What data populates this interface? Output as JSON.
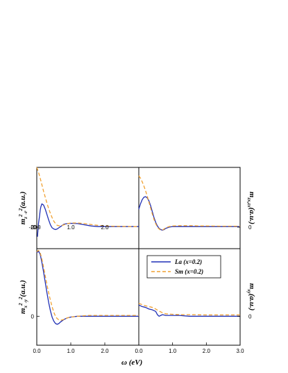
{
  "figure": {
    "x_axis_label": "ω (eV)",
    "panels": [
      {
        "id": "tl",
        "ylabel_parts": [
          "m",
          "z",
          "2",
          "-r",
          "2",
          "(a.u.)"
        ],
        "zero_label": "0",
        "zero_label_overlap": "-20"
      },
      {
        "id": "tr",
        "ylabel_parts": [
          "m",
          "zx,zx",
          "(a.u.)"
        ],
        "zero_label": "0"
      },
      {
        "id": "bl",
        "ylabel_parts": [
          "m",
          "x",
          "2",
          "-y",
          "2",
          "(a.u.)"
        ],
        "zero_label": "0"
      },
      {
        "id": "br",
        "ylabel_parts": [
          "m",
          "xy",
          "(a.u.)"
        ],
        "zero_label": "0"
      }
    ],
    "legend": [
      {
        "label": "La (x=0.2)",
        "color": "#1f2fb5",
        "style": "solid"
      },
      {
        "label": "Sm (x=0.2)",
        "color": "#f0a030",
        "style": "dashed"
      }
    ]
  },
  "chart_data": [
    {
      "type": "line",
      "panel": "tl",
      "xlim": [
        0,
        3.0
      ],
      "x_ticks": [
        0.0,
        1.0,
        2.0
      ],
      "x_tick_labels": [
        "0.0",
        "1.0",
        "2.0"
      ],
      "ylim": [
        -1.8,
        5.0
      ],
      "series": [
        {
          "name": "La (x=0.2)",
          "x": [
            0.02,
            0.05,
            0.08,
            0.1,
            0.12,
            0.15,
            0.2,
            0.25,
            0.3,
            0.35,
            0.4,
            0.45,
            0.5,
            0.55,
            0.6,
            0.65,
            0.7,
            0.8,
            0.9,
            1.0,
            1.2,
            1.4,
            1.6,
            1.8,
            2.0,
            2.2,
            2.4,
            2.6,
            2.8,
            3.0
          ],
          "y": [
            -0.8,
            0.3,
            0.9,
            1.4,
            1.7,
            1.95,
            1.85,
            1.5,
            1.05,
            0.6,
            0.2,
            -0.05,
            -0.15,
            -0.2,
            -0.15,
            -0.05,
            0.05,
            0.25,
            0.3,
            0.32,
            0.3,
            0.2,
            0.1,
            0.05,
            0.05,
            0.05,
            0.05,
            0.05,
            0.05,
            0.05
          ]
        },
        {
          "name": "Sm (x=0.2)",
          "x": [
            0.0,
            0.05,
            0.1,
            0.15,
            0.2,
            0.25,
            0.3,
            0.35,
            0.4,
            0.45,
            0.5,
            0.55,
            0.6,
            0.7,
            0.8,
            0.9,
            1.0,
            1.2,
            1.4,
            1.6,
            1.8,
            2.0,
            2.2,
            2.4,
            2.6,
            2.8,
            3.0
          ],
          "y": [
            5.0,
            4.6,
            4.1,
            3.55,
            3.0,
            2.5,
            2.0,
            1.55,
            1.15,
            0.8,
            0.5,
            0.3,
            0.15,
            0.1,
            0.2,
            0.3,
            0.35,
            0.35,
            0.3,
            0.22,
            0.15,
            0.1,
            0.08,
            0.07,
            0.06,
            0.05,
            0.05
          ]
        }
      ]
    },
    {
      "type": "line",
      "panel": "tr",
      "xlim": [
        0,
        3.0
      ],
      "ylim": [
        -1.8,
        5.0
      ],
      "series": [
        {
          "name": "La (x=0.2)",
          "x": [
            0.0,
            0.05,
            0.1,
            0.15,
            0.2,
            0.25,
            0.3,
            0.35,
            0.4,
            0.45,
            0.5,
            0.55,
            0.6,
            0.65,
            0.7,
            0.75,
            0.8,
            0.9,
            1.0,
            1.2,
            1.4,
            1.6,
            1.8,
            2.0,
            2.2,
            2.5,
            3.0
          ],
          "y": [
            1.5,
            1.95,
            2.3,
            2.5,
            2.55,
            2.45,
            2.2,
            1.8,
            1.3,
            0.8,
            0.4,
            0.1,
            -0.1,
            -0.2,
            -0.25,
            -0.2,
            -0.1,
            0.0,
            0.05,
            0.05,
            0.05,
            0.05,
            0.05,
            0.05,
            0.05,
            0.05,
            0.05
          ]
        },
        {
          "name": "Sm (x=0.2)",
          "x": [
            0.0,
            0.05,
            0.1,
            0.15,
            0.2,
            0.25,
            0.3,
            0.35,
            0.4,
            0.45,
            0.5,
            0.55,
            0.6,
            0.65,
            0.7,
            0.75,
            0.8,
            0.9,
            1.0,
            1.2,
            1.4,
            1.6,
            1.8,
            2.0,
            2.5,
            3.0
          ],
          "y": [
            4.3,
            4.1,
            3.8,
            3.45,
            3.05,
            2.6,
            2.1,
            1.6,
            1.1,
            0.65,
            0.3,
            0.0,
            -0.15,
            -0.25,
            -0.25,
            -0.15,
            -0.05,
            0.05,
            0.1,
            0.12,
            0.12,
            0.12,
            0.1,
            0.1,
            0.08,
            0.08
          ]
        }
      ]
    },
    {
      "type": "line",
      "panel": "bl",
      "xlim": [
        0,
        3.0
      ],
      "x_ticks": [
        0.0,
        1.0,
        2.0
      ],
      "x_tick_labels": [
        "0.0",
        "1.0",
        "2.0"
      ],
      "ylim": [
        -1.8,
        4.2
      ],
      "series": [
        {
          "name": "La (x=0.2)",
          "x": [
            0.0,
            0.05,
            0.1,
            0.15,
            0.2,
            0.25,
            0.3,
            0.35,
            0.4,
            0.45,
            0.5,
            0.55,
            0.6,
            0.65,
            0.7,
            0.8,
            0.9,
            1.0,
            1.2,
            1.5,
            2.0,
            2.5,
            3.0
          ],
          "y": [
            3.95,
            4.05,
            3.85,
            3.35,
            2.75,
            2.1,
            1.45,
            0.85,
            0.35,
            -0.05,
            -0.3,
            -0.45,
            -0.5,
            -0.45,
            -0.35,
            -0.2,
            -0.1,
            -0.05,
            0.0,
            0.0,
            0.0,
            0.0,
            0.0
          ]
        },
        {
          "name": "Sm (x=0.2)",
          "x": [
            0.0,
            0.05,
            0.1,
            0.15,
            0.2,
            0.25,
            0.3,
            0.35,
            0.4,
            0.45,
            0.5,
            0.55,
            0.6,
            0.65,
            0.7,
            0.8,
            0.9,
            1.0,
            1.2,
            1.5,
            2.0,
            2.5,
            3.0
          ],
          "y": [
            4.0,
            4.1,
            3.95,
            3.55,
            3.05,
            2.5,
            1.95,
            1.45,
            1.0,
            0.6,
            0.25,
            0.0,
            -0.15,
            -0.22,
            -0.25,
            -0.2,
            -0.1,
            -0.05,
            0.0,
            0.05,
            0.05,
            0.05,
            0.05
          ]
        }
      ]
    },
    {
      "type": "line",
      "panel": "br",
      "xlim": [
        0,
        3.0
      ],
      "x_ticks": [
        0.0,
        1.0,
        2.0,
        3.0
      ],
      "x_tick_labels": [
        "0.0",
        "1.0",
        "2.0",
        "3.0"
      ],
      "ylim": [
        -1.8,
        4.2
      ],
      "series": [
        {
          "name": "La (x=0.2)",
          "x": [
            0.0,
            0.1,
            0.2,
            0.3,
            0.4,
            0.5,
            0.55,
            0.6,
            0.65,
            0.7,
            0.8,
            0.9,
            1.0,
            1.2,
            1.5,
            2.0,
            2.5,
            3.0
          ],
          "y": [
            0.7,
            0.6,
            0.55,
            0.45,
            0.4,
            0.3,
            0.1,
            0.0,
            0.05,
            0.1,
            0.05,
            0.05,
            0.05,
            0.05,
            0.0,
            0.0,
            0.0,
            0.0
          ]
        },
        {
          "name": "Sm (x=0.2)",
          "x": [
            0.0,
            0.1,
            0.2,
            0.3,
            0.4,
            0.5,
            0.6,
            0.7,
            0.8,
            1.0,
            1.2,
            1.5,
            2.0,
            2.5,
            3.0
          ],
          "y": [
            0.8,
            0.72,
            0.65,
            0.6,
            0.55,
            0.45,
            0.32,
            0.22,
            0.15,
            0.12,
            0.1,
            0.1,
            0.08,
            0.08,
            0.08
          ]
        }
      ]
    }
  ]
}
